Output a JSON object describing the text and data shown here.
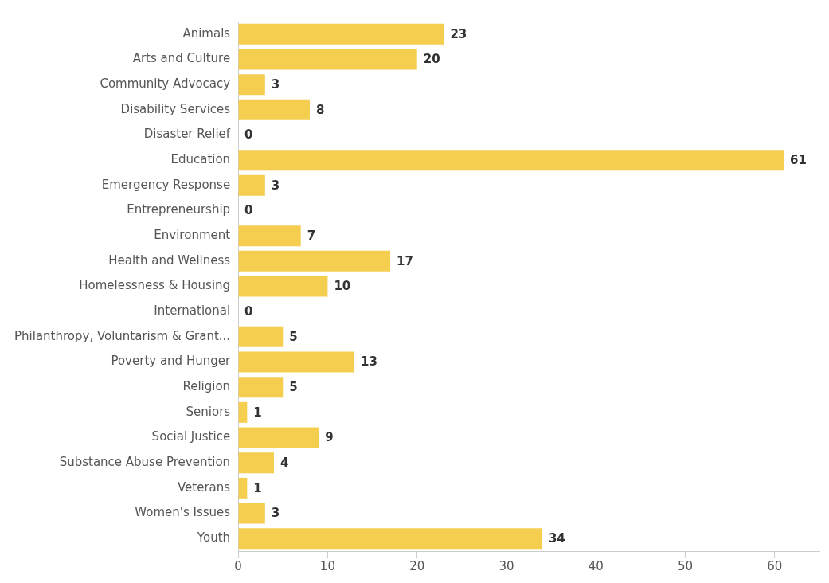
{
  "chart_data": {
    "type": "bar",
    "orientation": "horizontal",
    "categories": [
      "Animals",
      "Arts and Culture",
      "Community Advocacy",
      "Disability Services",
      "Disaster Relief",
      "Education",
      "Emergency Response",
      "Entrepreneurship",
      "Environment",
      "Health and Wellness",
      "Homelessness & Housing",
      "International",
      "Philanthropy, Voluntarism & Grant...",
      "Poverty and Hunger",
      "Religion",
      "Seniors",
      "Social Justice",
      "Substance Abuse Prevention",
      "Veterans",
      "Women's Issues",
      "Youth"
    ],
    "values": [
      23,
      20,
      3,
      8,
      0,
      61,
      3,
      0,
      7,
      17,
      10,
      0,
      5,
      13,
      5,
      1,
      9,
      4,
      1,
      3,
      34
    ],
    "color": "#f5cd4f",
    "xlim": [
      0,
      65
    ],
    "xticks": [
      0,
      10,
      20,
      30,
      40,
      50,
      60
    ],
    "grid": false,
    "legend": false,
    "data_labels": true
  }
}
